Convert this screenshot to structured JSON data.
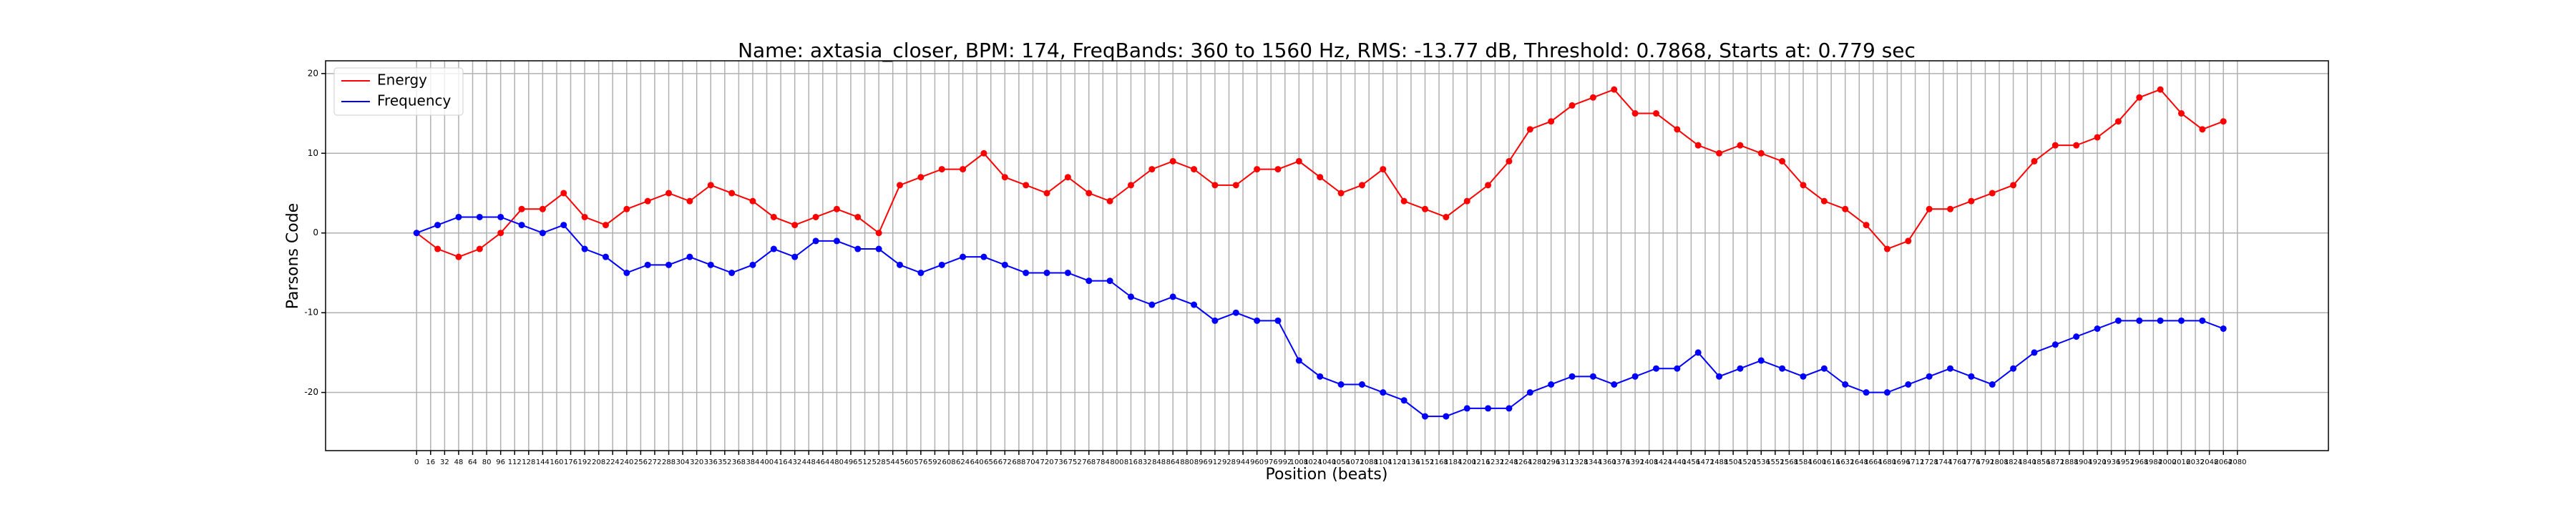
{
  "chart_data": {
    "type": "line",
    "title": "Name: axtasia_closer, BPM: 174, FreqBands: 360 to 1560 Hz, RMS: -13.77 dB, Threshold: 0.7868, Starts at: 0.779 sec",
    "x_label": "Position (beats)",
    "y_label": "Parsons Code",
    "x": [
      0,
      24,
      48,
      72,
      96,
      120,
      144,
      168,
      192,
      216,
      240,
      264,
      288,
      312,
      336,
      360,
      384,
      408,
      432,
      456,
      480,
      504,
      528,
      552,
      576,
      600,
      624,
      648,
      672,
      696,
      720,
      744,
      768,
      792,
      816,
      840,
      864,
      888,
      912,
      936,
      960,
      984,
      1008,
      1032,
      1056,
      1080,
      1104,
      1128,
      1152,
      1176,
      1200,
      1224,
      1248,
      1272,
      1296,
      1320,
      1344,
      1368,
      1392,
      1416,
      1440,
      1464,
      1488,
      1512,
      1536,
      1560,
      1584,
      1608,
      1632,
      1656,
      1680,
      1704,
      1728,
      1752,
      1776,
      1800,
      1824,
      1848,
      1872,
      1896,
      1920,
      1944,
      1968,
      1992,
      2016,
      2040,
      2064
    ],
    "series": [
      {
        "name": "Energy",
        "color": "#ff0000",
        "values": [
          0,
          -2,
          -3,
          -2,
          0,
          3,
          3,
          5,
          2,
          1,
          3,
          4,
          5,
          4,
          6,
          5,
          4,
          2,
          1,
          2,
          3,
          2,
          0,
          6,
          7,
          8,
          8,
          10,
          7,
          6,
          5,
          7,
          5,
          4,
          6,
          8,
          9,
          8,
          6,
          6,
          8,
          8,
          9,
          7,
          5,
          6,
          8,
          4,
          3,
          2,
          4,
          6,
          9,
          13,
          14,
          16,
          17,
          18,
          15,
          15,
          13,
          11,
          10,
          11,
          10,
          9,
          6,
          4,
          3,
          1,
          -2,
          -1,
          3,
          3,
          4,
          5,
          6,
          9,
          11,
          11,
          12,
          14,
          17,
          18,
          15,
          13,
          14
        ]
      },
      {
        "name": "Frequency",
        "color": "#0000ff",
        "values": [
          0,
          1,
          2,
          2,
          2,
          1,
          0,
          1,
          -2,
          -3,
          -5,
          -4,
          -4,
          -3,
          -4,
          -5,
          -4,
          -2,
          -3,
          -1,
          -1,
          -2,
          -2,
          -4,
          -5,
          -4,
          -3,
          -3,
          -4,
          -5,
          -5,
          -5,
          -6,
          -6,
          -8,
          -9,
          -8,
          -9,
          -11,
          -10,
          -11,
          -11,
          -16,
          -18,
          -19,
          -19,
          -20,
          -21,
          -23,
          -23,
          -22,
          -22,
          -22,
          -20,
          -19,
          -18,
          -18,
          -19,
          -18,
          -17,
          -17,
          -15,
          -18,
          -17,
          -16,
          -17,
          -18,
          -17,
          -19,
          -20,
          -20,
          -19,
          -18,
          -17,
          -18,
          -19,
          -17,
          -15,
          -14,
          -13,
          -12,
          -11,
          -11,
          -11,
          -11,
          -11,
          -12
        ]
      }
    ],
    "xlim": [
      -104,
      2184
    ],
    "ylim": [
      -27.3,
      21.6
    ],
    "xticks": [
      0,
      16,
      32,
      48,
      64,
      80,
      96,
      112,
      128,
      144,
      160,
      176,
      192,
      208,
      224,
      240,
      256,
      272,
      288,
      304,
      320,
      336,
      352,
      368,
      384,
      400,
      416,
      432,
      448,
      464,
      480,
      496,
      512,
      528,
      544,
      560,
      576,
      592,
      608,
      624,
      640,
      656,
      672,
      688,
      704,
      720,
      736,
      752,
      768,
      784,
      800,
      816,
      832,
      848,
      864,
      880,
      896,
      912,
      928,
      944,
      960,
      976,
      992,
      1008,
      1024,
      1040,
      1056,
      1072,
      1088,
      1104,
      1120,
      1136,
      1152,
      1168,
      1184,
      1200,
      1216,
      1232,
      1248,
      1264,
      1280,
      1296,
      1312,
      1328,
      1344,
      1360,
      1376,
      1392,
      1408,
      1424,
      1440,
      1456,
      1472,
      1488,
      1504,
      1520,
      1536,
      1552,
      1568,
      1584,
      1600,
      1616,
      1632,
      1648,
      1664,
      1680,
      1696,
      1712,
      1728,
      1744,
      1760,
      1776,
      1792,
      1808,
      1824,
      1840,
      1856,
      1872,
      1888,
      1904,
      1920,
      1936,
      1952,
      1968,
      1984,
      2000,
      2016,
      2032,
      2048,
      2064,
      2080
    ],
    "yticks": [
      -20,
      -10,
      0,
      10,
      20
    ],
    "grid": true,
    "legend": "upper left"
  }
}
